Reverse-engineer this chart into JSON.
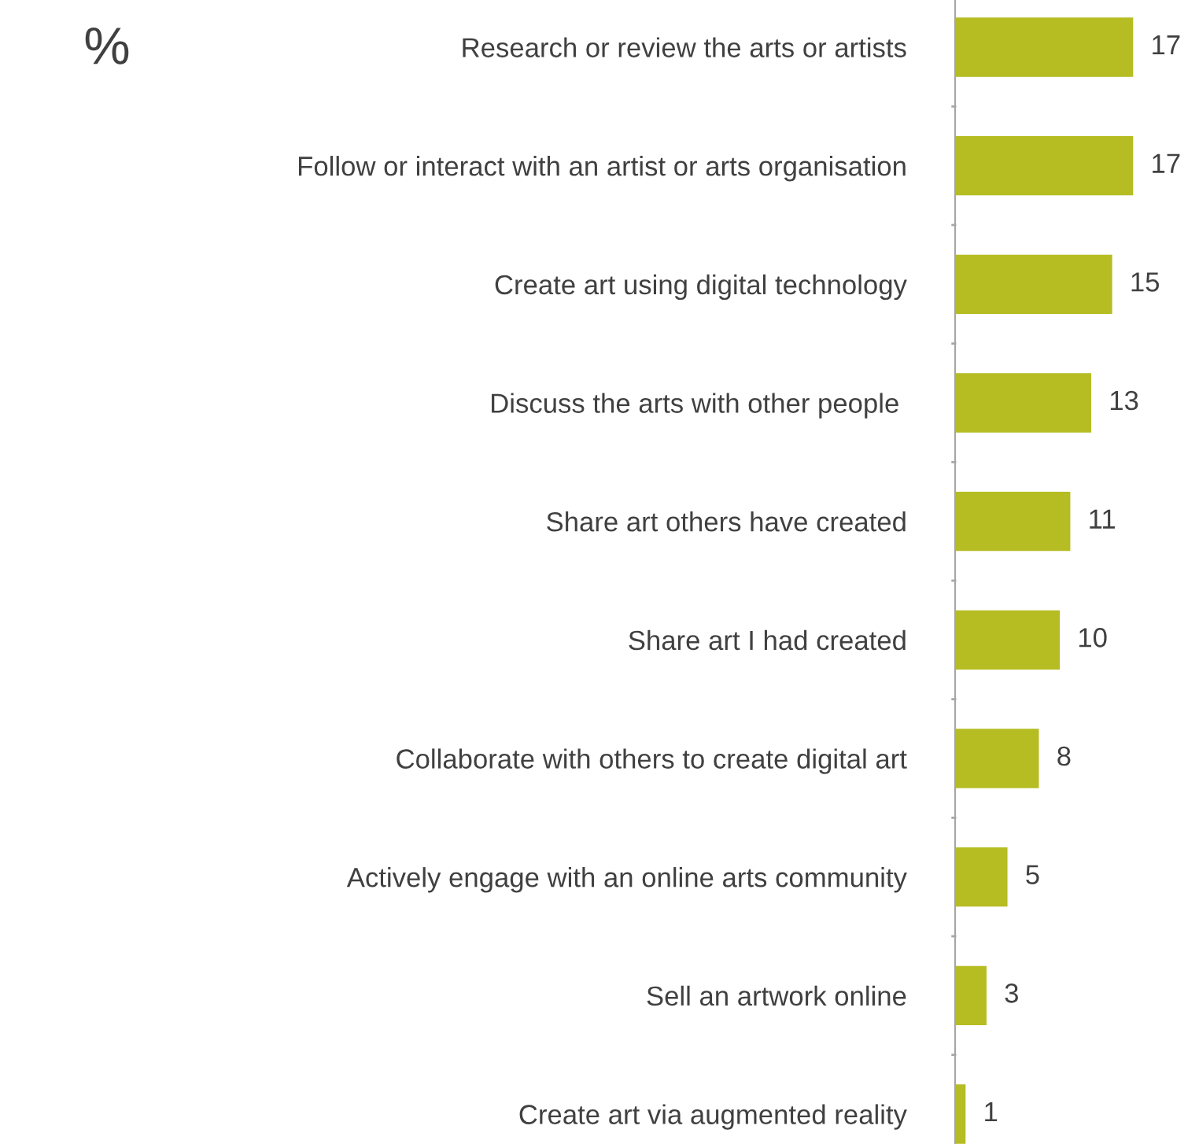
{
  "chart_data": {
    "type": "bar",
    "orientation": "horizontal",
    "title": "%",
    "categories": [
      "Research or review the arts or artists",
      "Follow or interact with an artist or arts organisation",
      "Create art using digital technology",
      "Discuss the arts with other people ",
      "Share art others have created",
      "Share art I had created",
      "Collaborate with others to create digital art",
      "Actively engage with an online arts community",
      "Sell an artwork online",
      "Create art via augmented reality"
    ],
    "values": [
      17,
      17,
      15,
      13,
      11,
      10,
      8,
      5,
      3,
      1
    ],
    "color": "#b5bd22",
    "data_labels": true,
    "grid": false,
    "legend": false
  }
}
